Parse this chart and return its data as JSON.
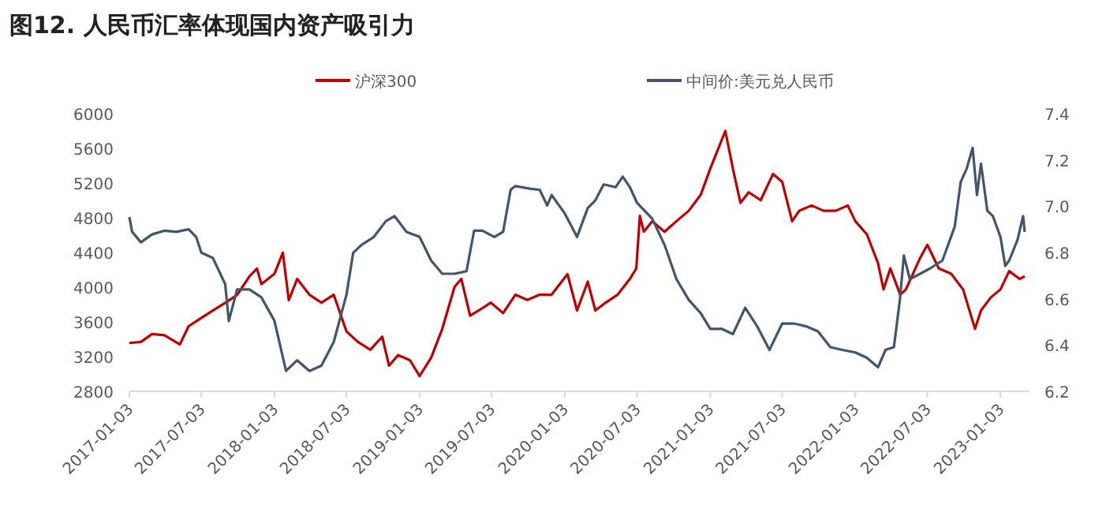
{
  "chart_data": {
    "type": "line",
    "title": "图12. 人民币汇率体现国内资产吸引力",
    "xlim": [
      "2017-01-03",
      "2023-03-15"
    ],
    "xticks": [
      "2017-01-03",
      "2017-07-03",
      "2018-01-03",
      "2018-07-03",
      "2019-01-03",
      "2019-07-03",
      "2020-01-03",
      "2020-07-03",
      "2021-01-03",
      "2021-07-03",
      "2022-01-03",
      "2022-07-03",
      "2023-01-03"
    ],
    "ylim": [
      2800,
      6000
    ],
    "yticks": [
      2800,
      3200,
      3600,
      4000,
      4400,
      4800,
      5200,
      5600,
      6000
    ],
    "y2lim": [
      6.2,
      7.4
    ],
    "y2ticks": [
      6.2,
      6.4,
      6.6,
      6.8,
      {
        "value": 7,
        "label": "7.0"
      },
      7.2,
      7.4
    ],
    "legend": "top",
    "series": [
      {
        "name": "沪深300",
        "color": "#c00000",
        "x": [
          "2017-01-03",
          "2017-02-01",
          "2017-03-01",
          "2017-04-01",
          "2017-05-10",
          "2017-06-01",
          "2017-07-01",
          "2017-08-01",
          "2017-09-01",
          "2017-10-01",
          "2017-11-01",
          "2017-11-20",
          "2017-12-01",
          "2018-01-03",
          "2018-01-24",
          "2018-02-08",
          "2018-03-01",
          "2018-04-01",
          "2018-05-01",
          "2018-06-01",
          "2018-07-03",
          "2018-08-01",
          "2018-09-01",
          "2018-10-01",
          "2018-10-18",
          "2018-11-10",
          "2018-12-10",
          "2019-01-03",
          "2019-02-01",
          "2019-03-01",
          "2019-04-01",
          "2019-04-18",
          "2019-05-10",
          "2019-06-01",
          "2019-07-01",
          "2019-08-01",
          "2019-09-01",
          "2019-10-01",
          "2019-11-01",
          "2019-12-01",
          "2020-01-10",
          "2020-02-03",
          "2020-03-01",
          "2020-03-20",
          "2020-04-15",
          "2020-05-15",
          "2020-06-15",
          "2020-07-01",
          "2020-07-10",
          "2020-07-20",
          "2020-08-10",
          "2020-09-10",
          "2020-10-10",
          "2020-11-10",
          "2020-12-10",
          "2021-01-03",
          "2021-02-10",
          "2021-03-01",
          "2021-03-20",
          "2021-04-10",
          "2021-05-10",
          "2021-06-10",
          "2021-07-03",
          "2021-07-28",
          "2021-08-15",
          "2021-09-15",
          "2021-10-15",
          "2021-11-15",
          "2021-12-15",
          "2022-01-03",
          "2022-02-01",
          "2022-03-01",
          "2022-03-15",
          "2022-04-01",
          "2022-04-26",
          "2022-05-10",
          "2022-06-15",
          "2022-07-03",
          "2022-08-01",
          "2022-09-01",
          "2022-10-01",
          "2022-10-31",
          "2022-11-15",
          "2022-12-10",
          "2023-01-03",
          "2023-01-25",
          "2023-02-20",
          "2023-03-05"
        ],
        "values": [
          3357,
          3369,
          3460,
          3447,
          3340,
          3550,
          3640,
          3730,
          3820,
          3910,
          4125,
          4215,
          4035,
          4155,
          4397,
          3850,
          4095,
          3913,
          3822,
          3913,
          3490,
          3369,
          3278,
          3430,
          3096,
          3217,
          3157,
          2975,
          3187,
          3520,
          4004,
          4095,
          3671,
          3732,
          3822,
          3701,
          3913,
          3853,
          3913,
          3913,
          4150,
          3732,
          4064,
          3732,
          3822,
          3913,
          4095,
          4216,
          4821,
          4639,
          4760,
          4639,
          4760,
          4881,
          5063,
          5365,
          5800,
          5365,
          4972,
          5093,
          5002,
          5305,
          5214,
          4760,
          4881,
          4942,
          4881,
          4881,
          4942,
          4760,
          4609,
          4276,
          3974,
          4216,
          3913,
          3974,
          4337,
          4488,
          4216,
          4155,
          3974,
          3520,
          3732,
          3883,
          3974,
          4185,
          4095,
          4125
        ]
      },
      {
        "name": "中间价:美元兑人民币",
        "color": "#44546a",
        "axis": "y2",
        "x": [
          "2017-01-03",
          "2017-01-10",
          "2017-02-01",
          "2017-03-01",
          "2017-04-01",
          "2017-05-01",
          "2017-06-01",
          "2017-06-20",
          "2017-07-03",
          "2017-08-01",
          "2017-09-01",
          "2017-09-10",
          "2017-10-01",
          "2017-11-01",
          "2017-12-01",
          "2018-01-03",
          "2018-02-01",
          "2018-03-01",
          "2018-04-01",
          "2018-05-01",
          "2018-06-01",
          "2018-07-03",
          "2018-07-20",
          "2018-08-10",
          "2018-09-10",
          "2018-10-10",
          "2018-11-01",
          "2018-12-01",
          "2019-01-03",
          "2019-02-01",
          "2019-03-01",
          "2019-04-01",
          "2019-05-01",
          "2019-05-20",
          "2019-06-10",
          "2019-07-10",
          "2019-08-01",
          "2019-08-20",
          "2019-09-01",
          "2019-10-10",
          "2019-11-01",
          "2019-11-20",
          "2019-12-01",
          "2020-01-03",
          "2020-02-03",
          "2020-03-01",
          "2020-03-20",
          "2020-04-10",
          "2020-05-10",
          "2020-05-28",
          "2020-06-15",
          "2020-07-03",
          "2020-08-10",
          "2020-09-10",
          "2020-10-10",
          "2020-11-10",
          "2020-12-10",
          "2021-01-03",
          "2021-02-01",
          "2021-03-01",
          "2021-04-01",
          "2021-05-01",
          "2021-06-01",
          "2021-07-03",
          "2021-08-01",
          "2021-09-01",
          "2021-10-01",
          "2021-11-01",
          "2021-12-01",
          "2022-01-03",
          "2022-02-01",
          "2022-03-01",
          "2022-03-20",
          "2022-04-10",
          "2022-04-25",
          "2022-05-05",
          "2022-05-20",
          "2022-06-15",
          "2022-07-10",
          "2022-08-10",
          "2022-09-10",
          "2022-09-25",
          "2022-10-10",
          "2022-10-25",
          "2022-11-05",
          "2022-11-15",
          "2022-12-01",
          "2022-12-15",
          "2023-01-03",
          "2023-01-15",
          "2023-01-25",
          "2023-02-15",
          "2023-03-01",
          "2023-03-05"
        ],
        "values": [
          6.953,
          6.889,
          6.844,
          6.878,
          6.894,
          6.889,
          6.9,
          6.867,
          6.799,
          6.776,
          6.663,
          6.504,
          6.64,
          6.64,
          6.606,
          6.504,
          6.288,
          6.334,
          6.288,
          6.311,
          6.413,
          6.617,
          6.799,
          6.833,
          6.867,
          6.935,
          6.957,
          6.889,
          6.867,
          6.765,
          6.708,
          6.708,
          6.719,
          6.894,
          6.894,
          6.867,
          6.889,
          7.071,
          7.087,
          7.075,
          7.071,
          7.003,
          7.048,
          6.969,
          6.867,
          6.992,
          7.025,
          7.094,
          7.082,
          7.128,
          7.082,
          7.014,
          6.946,
          6.833,
          6.685,
          6.595,
          6.538,
          6.47,
          6.47,
          6.447,
          6.561,
          6.481,
          6.379,
          6.493,
          6.493,
          6.481,
          6.459,
          6.391,
          6.379,
          6.368,
          6.345,
          6.304,
          6.379,
          6.391,
          6.595,
          6.787,
          6.685,
          6.708,
          6.731,
          6.765,
          6.912,
          7.105,
          7.162,
          7.252,
          7.048,
          7.184,
          6.98,
          6.957,
          6.867,
          6.742,
          6.765,
          6.855,
          6.957,
          6.889
        ]
      }
    ]
  }
}
